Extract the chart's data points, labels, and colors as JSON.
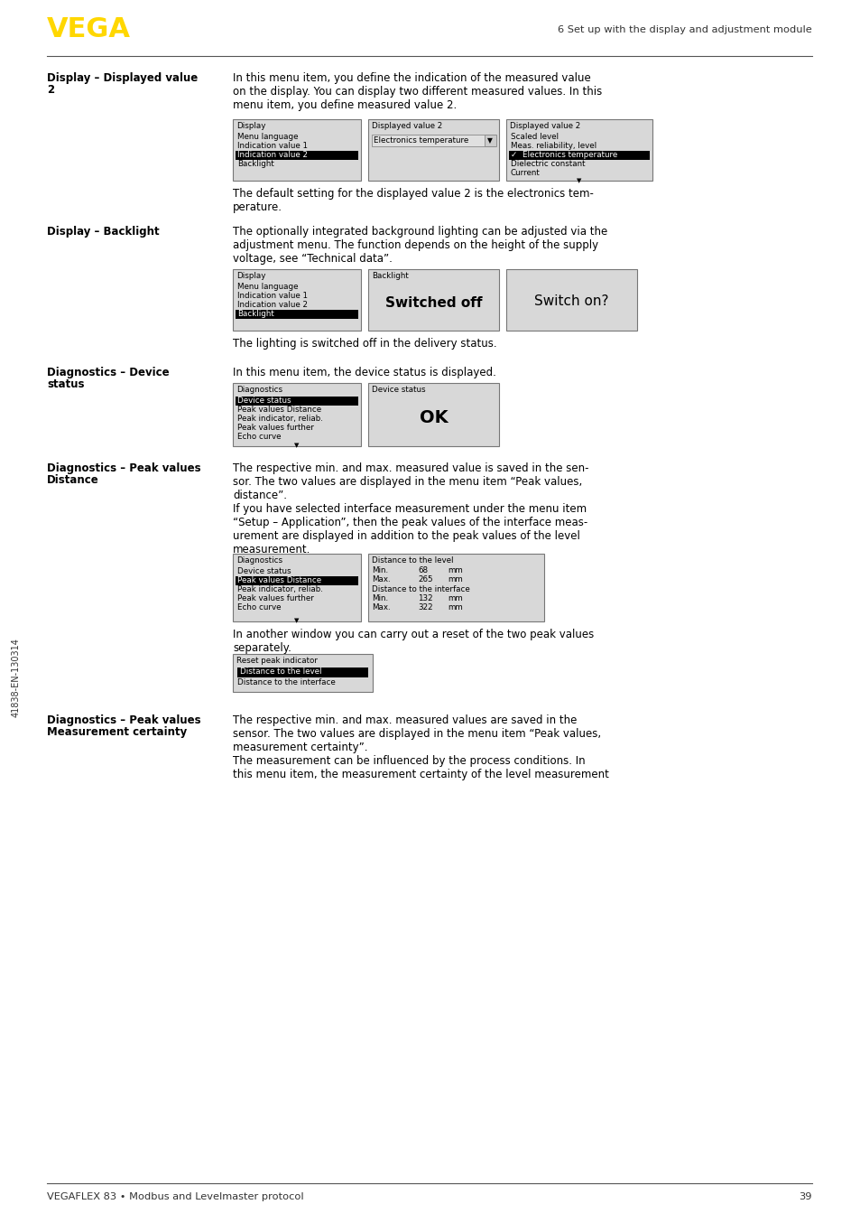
{
  "page_width": 9.54,
  "page_height": 13.54,
  "bg_color": "#ffffff",
  "header_logo_text": "VEGA",
  "header_logo_color": "#FFD700",
  "header_right_text": "6 Set up with the display and adjustment module",
  "footer_left_text": "VEGAFLEX 83 • Modbus and Levelmaster protocol",
  "footer_right_text": "39",
  "sidebar_text": "41838-EN-130314"
}
